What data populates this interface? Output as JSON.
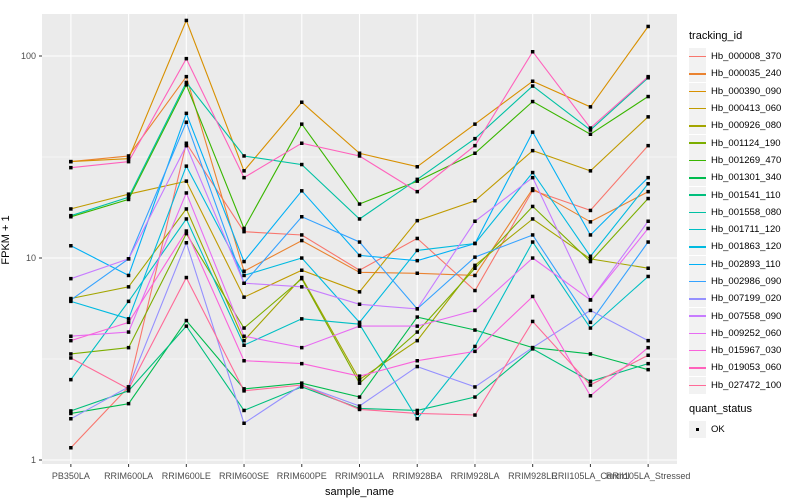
{
  "figure": {
    "panel_bg": "#EBEBEB",
    "grid_color": "#FFFFFF",
    "axis_text_color": "#4D4D4D",
    "tick_color": "#333333",
    "marker_color": "#000000",
    "legend_key_bg": "#F2F2F2"
  },
  "chart_data": {
    "type": "line",
    "title": "",
    "xlabel": "sample_name",
    "ylabel": "FPKM + 1",
    "y_scale": "log10",
    "y_ticks": [
      1,
      10,
      100
    ],
    "y_tick_labels": [
      "1",
      "10",
      "100"
    ],
    "y_minor": [
      3.162,
      31.623
    ],
    "ylim": [
      0.92,
      160
    ],
    "grid": true,
    "legend": {
      "title": "tracking_id",
      "position": "right"
    },
    "quant_legend": {
      "title": "quant_status",
      "items": [
        {
          "label": "OK",
          "marker": "black-square"
        }
      ]
    },
    "categories": [
      "PB350LA",
      "RRIM600LA",
      "RRIM600LE",
      "RRIM600SE",
      "RRIM600PE",
      "RRIM901LA",
      "RRIM928BA",
      "RRIM928LA",
      "RRIM928LE",
      "RRII105LA_Control",
      "RRII105LA_Stressed"
    ],
    "series": [
      {
        "name": "Hb_000008_370",
        "color": "#F8766D",
        "values": [
          1.15,
          2.3,
          37,
          13.5,
          13,
          8.7,
          12.5,
          6.9,
          21.6,
          17.2,
          36
        ]
      },
      {
        "name": "Hb_000035_240",
        "color": "#EA8331",
        "values": [
          30,
          32,
          79,
          8.6,
          12.2,
          8.5,
          8.4,
          8.2,
          22,
          15.1,
          21.3
        ]
      },
      {
        "name": "Hb_000390_090",
        "color": "#D89000",
        "values": [
          30,
          31,
          150,
          27,
          59,
          33,
          28.3,
          46,
          75,
          56,
          140
        ]
      },
      {
        "name": "Hb_000413_060",
        "color": "#C09B00",
        "values": [
          17.5,
          20.7,
          24,
          6.4,
          8.7,
          6.8,
          15.3,
          19.2,
          34,
          27,
          50
        ]
      },
      {
        "name": "Hb_000926_080",
        "color": "#A3A500",
        "values": [
          6.3,
          7.2,
          17.5,
          3.9,
          8.0,
          2.5,
          3.9,
          9.2,
          15.6,
          9.9,
          8.9
        ]
      },
      {
        "name": "Hb_001124_190",
        "color": "#7CAE00",
        "values": [
          3.35,
          3.6,
          13.2,
          4.5,
          7.9,
          2.4,
          4.3,
          8.9,
          18,
          9.6,
          19.7
        ]
      },
      {
        "name": "Hb_001269_470",
        "color": "#39B600",
        "values": [
          16,
          19.5,
          72,
          14,
          46,
          18.5,
          24,
          33,
          59.5,
          41,
          63
        ]
      },
      {
        "name": "Hb_001301_340",
        "color": "#00BB4E",
        "values": [
          1.7,
          1.9,
          4.9,
          2.25,
          2.4,
          2.05,
          5.1,
          4.4,
          3.6,
          3.35,
          2.8
        ]
      },
      {
        "name": "Hb_001541_110",
        "color": "#00BF7D",
        "values": [
          1.75,
          2.2,
          4.6,
          1.76,
          2.3,
          1.8,
          1.76,
          2.05,
          3.55,
          2.45,
          3.0
        ]
      },
      {
        "name": "Hb_001558_080",
        "color": "#00C1A3",
        "values": [
          16.2,
          20,
          74,
          32,
          29,
          15.6,
          24.5,
          39,
          71,
          43,
          78
        ]
      },
      {
        "name": "Hb_001711_120",
        "color": "#00BFC4",
        "values": [
          2.5,
          6.1,
          15.6,
          3.7,
          5.0,
          4.7,
          1.6,
          3.65,
          12,
          4.5,
          8.1
        ]
      },
      {
        "name": "Hb_001863_120",
        "color": "#00BAE0",
        "values": [
          6.1,
          5.0,
          28.5,
          8.2,
          10,
          4.8,
          10.9,
          11.8,
          26.5,
          10.2,
          23.3
        ]
      },
      {
        "name": "Hb_002893_110",
        "color": "#00B0F6",
        "values": [
          11.5,
          8.2,
          52,
          9.6,
          21.5,
          10.3,
          9.7,
          11.8,
          42,
          13,
          25
        ]
      },
      {
        "name": "Hb_002986_090",
        "color": "#35A2FF",
        "values": [
          6.2,
          9.9,
          47,
          7.5,
          16,
          12,
          5.6,
          10.1,
          13,
          4.8,
          12
        ]
      },
      {
        "name": "Hb_007199_020",
        "color": "#9590FF",
        "values": [
          1.6,
          2.3,
          11.9,
          1.52,
          2.35,
          1.85,
          2.9,
          2.3,
          3.6,
          5.5,
          3.9
        ]
      },
      {
        "name": "Hb_007558_090",
        "color": "#C77CFF",
        "values": [
          7.9,
          9.9,
          36,
          7.5,
          7.2,
          5.9,
          5.6,
          15.2,
          25,
          6.2,
          15.2
        ]
      },
      {
        "name": "Hb_009252_060",
        "color": "#E76BF3",
        "values": [
          4.1,
          4.3,
          21,
          4.1,
          3.6,
          4.6,
          4.6,
          5.5,
          10,
          6.2,
          14
        ]
      },
      {
        "name": "Hb_015967_030",
        "color": "#FA62DB",
        "values": [
          3.9,
          4.8,
          13.6,
          3.1,
          3.0,
          2.6,
          3.1,
          3.45,
          6.45,
          2.08,
          3.6
        ]
      },
      {
        "name": "Hb_019053_060",
        "color": "#FF62BC",
        "values": [
          28,
          30,
          97,
          25,
          37,
          32,
          21.3,
          36,
          105,
          44,
          79
        ]
      },
      {
        "name": "Hb_027472_100",
        "color": "#FF6A98",
        "values": [
          3.2,
          2.25,
          8,
          2.2,
          2.35,
          1.78,
          1.7,
          1.67,
          4.85,
          2.35,
          3.3
        ]
      }
    ]
  }
}
